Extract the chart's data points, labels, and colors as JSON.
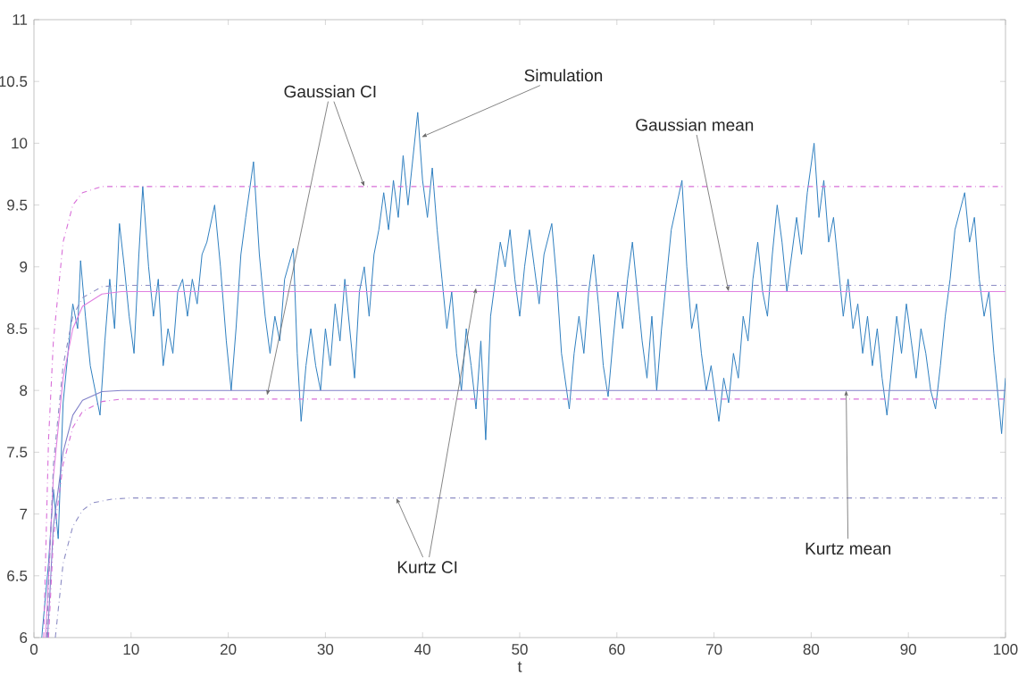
{
  "chart_data": {
    "type": "line",
    "xlabel": "t",
    "xlim": [
      0,
      100
    ],
    "xticks": [
      0,
      10,
      20,
      30,
      40,
      50,
      60,
      70,
      80,
      90,
      100
    ],
    "ylim": [
      6,
      11
    ],
    "yticks": [
      6,
      6.5,
      7,
      7.5,
      8,
      8.5,
      9,
      9.5,
      10,
      10.5,
      11
    ],
    "grid": false,
    "marker": "none",
    "annotations": [
      {
        "text": "Gaussian CI",
        "x": 34,
        "y": 9.65
      },
      {
        "text": "Simulation",
        "x": 39.9,
        "y": 10.05
      },
      {
        "text": "Gaussian mean",
        "x": 71.5,
        "y": 8.8
      },
      {
        "text": "Kurtz CI",
        "x": 37.3,
        "y": 7.13
      },
      {
        "text": "Kurtz mean",
        "x": 83.6,
        "y": 8.0
      }
    ],
    "series": [
      {
        "color": "#2f80c0",
        "line_style": "solid",
        "x": [
          0.8,
          1.5,
          2,
          2.5,
          3,
          3.5,
          4,
          4.5,
          4.8,
          5.3,
          5.8,
          6.3,
          6.8,
          7.3,
          7.8,
          8.3,
          8.8,
          9.3,
          9.8,
          10.3,
          10.8,
          11.2,
          11.8,
          12.3,
          12.8,
          13.3,
          13.8,
          14.3,
          14.8,
          15.3,
          15.8,
          16.3,
          16.8,
          17.3,
          17.8,
          18.6,
          19.2,
          19.8,
          20.3,
          20.8,
          21.3,
          21.8,
          22.6,
          23.2,
          23.8,
          24.3,
          24.8,
          25.3,
          25.8,
          26.7,
          27.1,
          27.5,
          28,
          28.5,
          29,
          29.5,
          30,
          30.5,
          31,
          31.5,
          32,
          32.5,
          33,
          33.5,
          34,
          34.5,
          35,
          35.5,
          36,
          36.5,
          37,
          37.5,
          38,
          38.5,
          39.5,
          40,
          40.5,
          41,
          41.5,
          42,
          42.5,
          43,
          43.5,
          44,
          44.5,
          45,
          45.5,
          46,
          46.5,
          47,
          47.5,
          48,
          48.5,
          49,
          49.5,
          50,
          50.5,
          51,
          51.5,
          52,
          52.5,
          53.3,
          53.8,
          54.3,
          55.1,
          55.6,
          56.1,
          56.6,
          57.1,
          57.6,
          58.1,
          58.6,
          59.1,
          59.6,
          60.1,
          60.6,
          61.1,
          61.6,
          62.1,
          62.6,
          63.1,
          63.6,
          64.1,
          64.6,
          65.1,
          65.6,
          66.7,
          67.2,
          67.7,
          68.2,
          68.7,
          69.2,
          69.7,
          70.5,
          71,
          71.5,
          72,
          72.5,
          73,
          73.5,
          74,
          74.5,
          75,
          75.5,
          76,
          76.5,
          77,
          77.5,
          78,
          78.5,
          79,
          79.6,
          80.3,
          80.8,
          81.3,
          81.8,
          82.3,
          82.8,
          83.3,
          83.8,
          84.3,
          84.8,
          85.3,
          85.8,
          86.3,
          86.8,
          87.3,
          87.8,
          88.3,
          88.8,
          89.3,
          89.8,
          90.3,
          90.8,
          91.3,
          91.8,
          92.3,
          92.8,
          93.3,
          93.8,
          94.3,
          94.8,
          95.8,
          96.3,
          96.8,
          97.3,
          97.8,
          98.3,
          98.8,
          99.3,
          99.6,
          100
        ],
        "values": [
          6.0,
          6.6,
          7.2,
          6.8,
          7.9,
          8.3,
          8.7,
          8.5,
          9.05,
          8.6,
          8.2,
          8.0,
          7.8,
          8.4,
          8.9,
          8.5,
          9.35,
          9.0,
          8.6,
          8.3,
          9.1,
          9.65,
          9.0,
          8.6,
          8.9,
          8.2,
          8.5,
          8.3,
          8.8,
          8.9,
          8.6,
          8.9,
          8.7,
          9.1,
          9.2,
          9.5,
          9.0,
          8.4,
          8.0,
          8.5,
          9.1,
          9.4,
          9.85,
          9.1,
          8.6,
          8.3,
          8.6,
          8.4,
          8.9,
          9.15,
          8.3,
          7.75,
          8.2,
          8.5,
          8.2,
          8.0,
          8.5,
          8.2,
          8.7,
          8.4,
          8.9,
          8.5,
          8.1,
          8.8,
          9.0,
          8.6,
          9.1,
          9.3,
          9.6,
          9.3,
          9.7,
          9.4,
          9.9,
          9.5,
          10.25,
          9.7,
          9.4,
          9.8,
          9.3,
          8.9,
          8.5,
          8.8,
          8.3,
          8.0,
          8.5,
          8.2,
          7.85,
          8.4,
          7.6,
          8.6,
          8.9,
          9.2,
          9.0,
          9.3,
          8.9,
          8.6,
          9.0,
          9.3,
          9.0,
          8.7,
          9.1,
          9.35,
          8.9,
          8.3,
          7.85,
          8.3,
          8.6,
          8.3,
          8.8,
          9.1,
          8.7,
          8.2,
          7.95,
          8.4,
          8.8,
          8.5,
          8.9,
          9.2,
          8.8,
          8.4,
          8.1,
          8.6,
          8.0,
          8.5,
          8.9,
          9.3,
          9.7,
          9.0,
          8.5,
          8.7,
          8.3,
          8.0,
          8.2,
          7.75,
          8.1,
          7.9,
          8.3,
          8.1,
          8.6,
          8.4,
          8.9,
          9.2,
          8.8,
          8.6,
          9.1,
          9.5,
          9.2,
          8.8,
          9.1,
          9.4,
          9.1,
          9.6,
          10.0,
          9.4,
          9.7,
          9.2,
          9.4,
          9.0,
          8.6,
          8.9,
          8.5,
          8.7,
          8.3,
          8.6,
          8.2,
          8.5,
          8.1,
          7.8,
          8.2,
          8.6,
          8.3,
          8.7,
          8.4,
          8.1,
          8.5,
          8.3,
          8.0,
          7.85,
          8.2,
          8.6,
          8.9,
          9.3,
          9.6,
          9.2,
          9.4,
          8.9,
          8.6,
          8.8,
          8.3,
          7.9,
          7.65,
          8.1
        ]
      },
      {
        "color": "#d86ed8",
        "line_style": "dashdotted",
        "x": [
          1,
          1.5,
          2,
          3,
          4,
          5,
          7,
          100
        ],
        "values": [
          6.0,
          7.6,
          8.4,
          9.2,
          9.5,
          9.6,
          9.65,
          9.65
        ]
      },
      {
        "color": "#e07fe0",
        "line_style": "solid",
        "x": [
          1.2,
          2,
          3,
          4,
          5,
          7,
          9,
          100
        ],
        "values": [
          6.0,
          7.3,
          8.1,
          8.5,
          8.68,
          8.78,
          8.8,
          8.8
        ]
      },
      {
        "color": "#8c8cc4",
        "line_style": "dashdotted",
        "x": [
          1.3,
          2,
          3,
          4,
          5,
          7,
          9,
          100
        ],
        "values": [
          6.0,
          7.4,
          8.2,
          8.6,
          8.75,
          8.84,
          8.85,
          8.85
        ]
      },
      {
        "color": "#8080c8",
        "line_style": "solid",
        "x": [
          1.4,
          2,
          3,
          4,
          5,
          7,
          9,
          100
        ],
        "values": [
          6.0,
          6.9,
          7.5,
          7.8,
          7.92,
          7.99,
          8.0,
          8.0
        ]
      },
      {
        "color": "#d86ed8",
        "line_style": "dashdotted",
        "x": [
          1.5,
          2,
          3,
          4,
          5,
          7,
          9,
          100
        ],
        "values": [
          6.0,
          6.8,
          7.4,
          7.7,
          7.83,
          7.91,
          7.93,
          7.93
        ]
      },
      {
        "color": "#8c8cc4",
        "line_style": "dashdotted",
        "x": [
          2.2,
          3,
          4,
          5,
          6,
          8,
          10,
          100
        ],
        "values": [
          6.0,
          6.6,
          6.9,
          7.03,
          7.09,
          7.12,
          7.13,
          7.13
        ]
      }
    ]
  }
}
